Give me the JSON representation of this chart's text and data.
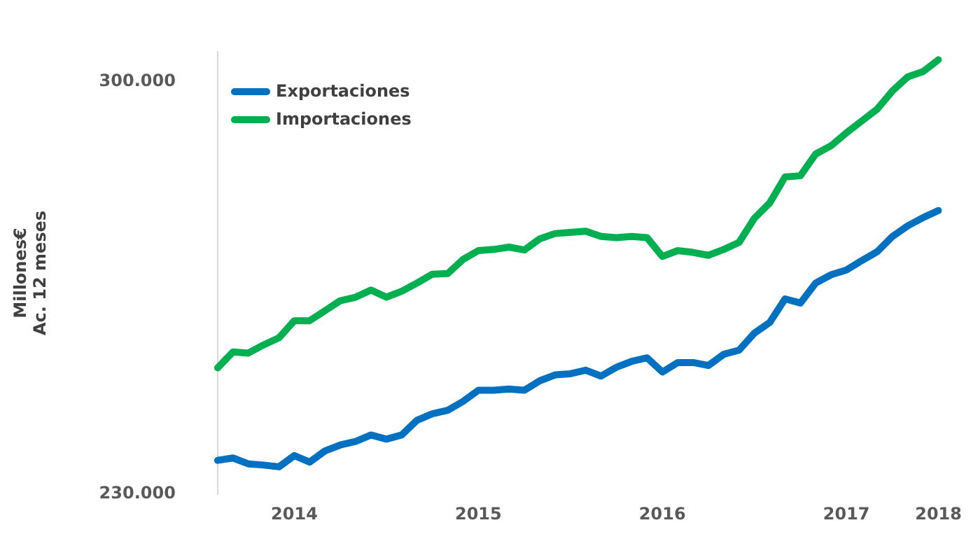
{
  "chart_data": {
    "type": "line",
    "ylabel": "Millones€\nAc. 12 meses",
    "categories": [
      null,
      null,
      null,
      null,
      null,
      "2014",
      null,
      null,
      null,
      null,
      null,
      null,
      null,
      null,
      null,
      null,
      null,
      "2015",
      null,
      null,
      null,
      null,
      null,
      null,
      null,
      null,
      null,
      null,
      null,
      "2016",
      null,
      null,
      null,
      null,
      null,
      null,
      null,
      null,
      null,
      null,
      null,
      "2017",
      null,
      null,
      null,
      null,
      null,
      "2018"
    ],
    "series": [
      {
        "name": "Exportaciones",
        "color": "#0070c0",
        "values": [
          235700,
          236100,
          235100,
          234900,
          234600,
          236500,
          235400,
          237300,
          238300,
          238900,
          240000,
          239300,
          240000,
          242500,
          243600,
          244200,
          245700,
          247600,
          247600,
          247800,
          247600,
          249200,
          250200,
          250400,
          251000,
          250000,
          251500,
          252500,
          253100,
          250700,
          252300,
          252300,
          251800,
          253700,
          254400,
          257300,
          259100,
          263100,
          262400,
          265800,
          267200,
          268000,
          269600,
          271100,
          273700,
          275500,
          276900,
          278100
        ]
      },
      {
        "name": "Importaciones",
        "color": "#00b050",
        "values": [
          251400,
          254100,
          253900,
          255300,
          256500,
          259400,
          259400,
          261100,
          262800,
          263400,
          264600,
          263400,
          264400,
          265800,
          267300,
          267400,
          269800,
          271300,
          271500,
          271900,
          271400,
          273300,
          274200,
          274400,
          274600,
          273700,
          273500,
          273700,
          273500,
          270300,
          271300,
          271000,
          270500,
          271500,
          272700,
          276800,
          279400,
          283800,
          284000,
          287700,
          289100,
          291300,
          293300,
          295300,
          298400,
          300800,
          301700,
          303700
        ]
      }
    ],
    "yticks": [
      {
        "value": 230000,
        "label": "230.000"
      },
      {
        "value": 300000,
        "label": "300.000"
      }
    ],
    "ylim": [
      230000,
      305000
    ],
    "grid": false,
    "legend": "top left",
    "marker": "none",
    "line_style": "solid"
  }
}
